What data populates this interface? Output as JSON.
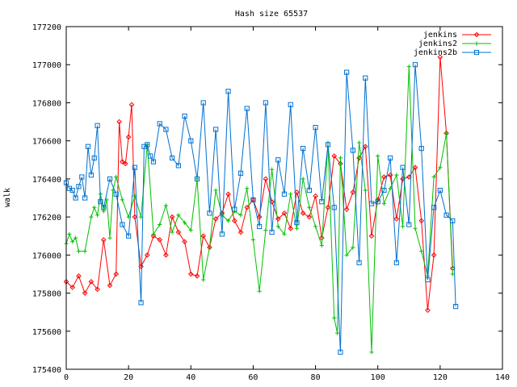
{
  "chart_data": {
    "type": "line",
    "title": "Hash size 65537",
    "xlabel": "",
    "ylabel": "walk",
    "xlim": [
      0,
      140
    ],
    "ylim": [
      175400,
      177200
    ],
    "xticks": [
      0,
      20,
      40,
      60,
      80,
      100,
      120,
      140
    ],
    "yticks": [
      175400,
      175600,
      175800,
      176000,
      176200,
      176400,
      176600,
      176800,
      177000,
      177200
    ],
    "grid": false,
    "legend_position": "top-right",
    "series": [
      {
        "name": "jenkins",
        "color": "#ff0000",
        "marker": "diamond",
        "x": [
          0,
          2,
          4,
          6,
          8,
          10,
          12,
          14,
          16,
          17,
          18,
          19,
          20,
          21,
          22,
          24,
          26,
          28,
          30,
          32,
          34,
          36,
          38,
          40,
          42,
          44,
          46,
          48,
          50,
          52,
          54,
          56,
          58,
          60,
          62,
          64,
          66,
          68,
          70,
          72,
          74,
          76,
          78,
          80,
          82,
          84,
          86,
          88,
          90,
          92,
          94,
          96,
          98,
          100,
          102,
          104,
          106,
          108,
          110,
          112,
          114,
          116,
          118,
          120,
          122,
          124
        ],
        "y": [
          175860,
          175830,
          175890,
          175800,
          175860,
          175820,
          176080,
          175840,
          175900,
          176700,
          176490,
          176480,
          176620,
          176790,
          176200,
          175940,
          176000,
          176100,
          176080,
          176000,
          176200,
          176120,
          176070,
          175900,
          175890,
          176100,
          176040,
          176190,
          176220,
          176320,
          176180,
          176120,
          176250,
          176290,
          176200,
          176400,
          176280,
          176190,
          176220,
          176140,
          176330,
          176220,
          176200,
          176310,
          176090,
          176250,
          176520,
          176480,
          176240,
          176330,
          176510,
          176570,
          176100,
          176290,
          176410,
          176420,
          176190,
          176400,
          176410,
          176460,
          176180,
          175710,
          176000,
          177040,
          176640,
          175930
        ]
      },
      {
        "name": "jenkins2",
        "color": "#00c000",
        "marker": "plus",
        "x": [
          0,
          1,
          2,
          3,
          4,
          6,
          8,
          9,
          10,
          11,
          12,
          13,
          14,
          15,
          16,
          18,
          20,
          22,
          24,
          26,
          28,
          30,
          32,
          34,
          36,
          38,
          40,
          42,
          44,
          46,
          48,
          50,
          52,
          54,
          56,
          58,
          60,
          62,
          64,
          66,
          68,
          70,
          72,
          74,
          76,
          78,
          80,
          82,
          84,
          86,
          87,
          88,
          90,
          92,
          94,
          96,
          98,
          100,
          102,
          104,
          106,
          108,
          110,
          112,
          114,
          116,
          118,
          120,
          122,
          124
        ],
        "y": [
          176060,
          176110,
          176070,
          176090,
          176020,
          176020,
          176200,
          176250,
          176210,
          176320,
          176230,
          176290,
          176090,
          176340,
          176410,
          176290,
          176200,
          176310,
          176200,
          176580,
          176110,
          176160,
          176260,
          176120,
          176210,
          176170,
          176130,
          176400,
          175870,
          176040,
          176340,
          176210,
          176180,
          176230,
          176210,
          176350,
          176080,
          175810,
          176130,
          176450,
          176150,
          176110,
          176320,
          176140,
          176400,
          176250,
          176150,
          176050,
          176590,
          175670,
          175590,
          176510,
          176000,
          176040,
          176590,
          176340,
          175490,
          176520,
          176270,
          176350,
          176420,
          176150,
          176990,
          176140,
          176020,
          175890,
          176410,
          176460,
          176640,
          175900
        ]
      },
      {
        "name": "jenkins2b",
        "color": "#0070d0",
        "marker": "square",
        "x": [
          0,
          1,
          2,
          3,
          4,
          5,
          6,
          7,
          8,
          9,
          10,
          11,
          12,
          14,
          16,
          18,
          20,
          22,
          24,
          25,
          26,
          27,
          28,
          30,
          32,
          34,
          36,
          38,
          40,
          42,
          44,
          46,
          48,
          50,
          52,
          54,
          56,
          58,
          60,
          62,
          64,
          66,
          68,
          70,
          72,
          74,
          76,
          78,
          80,
          82,
          84,
          86,
          88,
          90,
          92,
          94,
          96,
          98,
          100,
          102,
          104,
          106,
          108,
          110,
          112,
          114,
          116,
          118,
          120,
          122,
          124,
          125
        ],
        "y": [
          176380,
          176350,
          176340,
          176300,
          176360,
          176410,
          176300,
          176570,
          176420,
          176510,
          176680,
          176280,
          176250,
          176400,
          176320,
          176160,
          176100,
          176460,
          175750,
          176570,
          176580,
          176520,
          176490,
          176690,
          176660,
          176510,
          176470,
          176730,
          176600,
          176400,
          176800,
          176220,
          176660,
          176110,
          176860,
          176240,
          176430,
          176770,
          176290,
          176150,
          176800,
          176120,
          176500,
          176320,
          176790,
          176170,
          176560,
          176340,
          176670,
          176280,
          176580,
          176250,
          175490,
          176960,
          176550,
          175960,
          176930,
          176270,
          176280,
          176340,
          176510,
          175960,
          176460,
          176160,
          177000,
          176560,
          175870,
          176250,
          176340,
          176210,
          176180,
          175730
        ]
      }
    ]
  }
}
